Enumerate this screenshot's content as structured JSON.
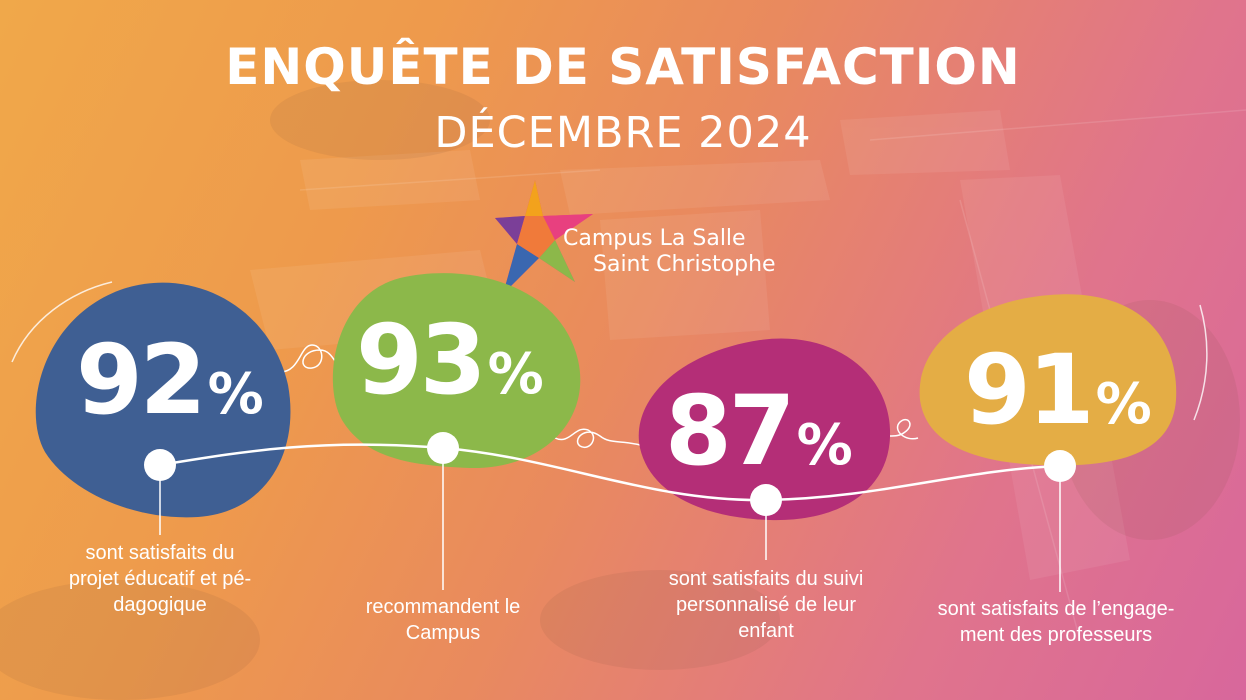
{
  "header": {
    "title": "ENQUÊTE DE SATISFACTION",
    "subtitle": "DÉCEMBRE 2024"
  },
  "logo": {
    "line1": "Campus La Salle",
    "line2": "Saint Christophe"
  },
  "stats": [
    {
      "number": "92",
      "unit": "%",
      "color": "#3f5f93",
      "caption_lines": [
        "sont satisfaits du",
        "projet éducatif et pé-",
        "dagogique"
      ]
    },
    {
      "number": "93",
      "unit": "%",
      "color": "#8cb84a",
      "caption_lines": [
        "recommandent le",
        "Campus"
      ]
    },
    {
      "number": "87",
      "unit": "%",
      "color": "#b42e77",
      "caption_lines": [
        "sont satisfaits du suivi",
        "personnalisé de leur",
        "enfant"
      ]
    },
    {
      "number": "91",
      "unit": "%",
      "color": "#e4ad45",
      "caption_lines": [
        "sont satisfaits de l’engage-",
        "ment des professeurs"
      ]
    }
  ],
  "colors": {
    "gradient_left": "#f0a84a",
    "gradient_right": "#d8679c",
    "text": "#ffffff"
  }
}
